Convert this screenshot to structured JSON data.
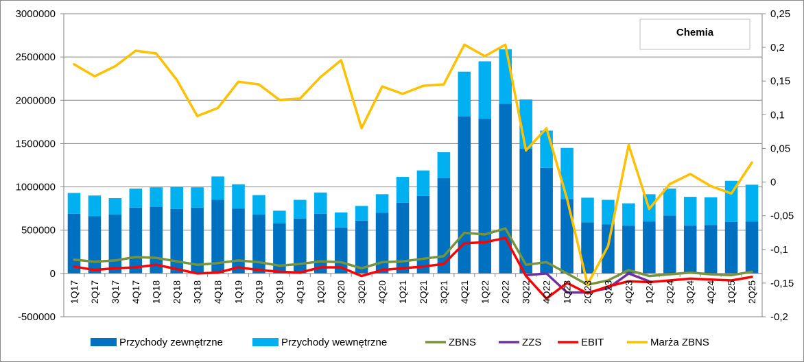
{
  "chart_data": {
    "type": "bar",
    "title": "Chemia",
    "categories": [
      "1Q17",
      "2Q17",
      "3Q17",
      "4Q17",
      "1Q18",
      "2Q18",
      "3Q18",
      "4Q18",
      "1Q19",
      "2Q19",
      "3Q19",
      "4Q19",
      "1Q20",
      "2Q20",
      "3Q20",
      "4Q20",
      "1Q21",
      "2Q21",
      "3Q21",
      "4Q21",
      "1Q22",
      "2Q22",
      "3Q22",
      "4Q22",
      "1Q23",
      "2Q23",
      "3Q23",
      "4Q23",
      "1Q24",
      "2Q24",
      "3Q24",
      "4Q24",
      "1Q25",
      "2Q25"
    ],
    "y_left": {
      "ylim": [
        -500000,
        3000000
      ],
      "ticks": [
        "-500000",
        "0",
        "500000",
        "1000000",
        "1500000",
        "2000000",
        "2500000",
        "3000000"
      ],
      "tick_values": [
        -500000,
        0,
        500000,
        1000000,
        1500000,
        2000000,
        2500000,
        3000000
      ]
    },
    "y_right": {
      "ylim": [
        -0.2,
        0.25
      ],
      "ticks": [
        "-0,2",
        "-0,15",
        "-0,1",
        "-0,05",
        "0",
        "0,05",
        "0,1",
        "0,15",
        "0,2",
        "0,25"
      ],
      "tick_values": [
        -0.2,
        -0.15,
        -0.1,
        -0.05,
        0,
        0.05,
        0.1,
        0.15,
        0.2,
        0.25
      ]
    },
    "grid": true,
    "legend_position": "bottom",
    "series": [
      {
        "name": "Przychody zewnętrzne",
        "kind": "stacked-bar",
        "axis": "left",
        "color": "#0070c0",
        "values": [
          690000,
          660000,
          680000,
          760000,
          770000,
          745000,
          760000,
          850000,
          750000,
          680000,
          580000,
          635000,
          690000,
          530000,
          610000,
          700000,
          815000,
          895000,
          1100000,
          1815000,
          1785000,
          1960000,
          1440000,
          1220000,
          860000,
          590000,
          565000,
          555000,
          600000,
          670000,
          555000,
          560000,
          595000,
          600000
        ]
      },
      {
        "name": "Przychody wewnętrzne",
        "kind": "stacked-bar",
        "axis": "left",
        "color": "#00b0f0",
        "values": [
          240000,
          240000,
          190000,
          220000,
          225000,
          255000,
          235000,
          270000,
          280000,
          225000,
          145000,
          215000,
          245000,
          175000,
          170000,
          215000,
          300000,
          295000,
          300000,
          515000,
          665000,
          630000,
          570000,
          430000,
          590000,
          285000,
          285000,
          255000,
          315000,
          310000,
          330000,
          320000,
          475000,
          425000
        ]
      },
      {
        "name": "ZBNS",
        "kind": "line",
        "axis": "left",
        "color": "#77933c",
        "values": [
          160000,
          135000,
          150000,
          190000,
          180000,
          140000,
          100000,
          120000,
          150000,
          130000,
          90000,
          110000,
          140000,
          130000,
          60000,
          130000,
          140000,
          170000,
          200000,
          470000,
          450000,
          520000,
          100000,
          130000,
          0,
          -130000,
          -80000,
          40000,
          -30000,
          -10000,
          10000,
          -10000,
          -20000,
          20000
        ]
      },
      {
        "name": "ZZS",
        "kind": "line",
        "axis": "left",
        "color": "#7030a0",
        "values": [
          null,
          null,
          null,
          null,
          null,
          null,
          null,
          null,
          null,
          null,
          null,
          null,
          null,
          null,
          null,
          null,
          null,
          null,
          null,
          null,
          null,
          null,
          -20000,
          0,
          -220000,
          -220000,
          -170000,
          0,
          -90000,
          null,
          null,
          null,
          null,
          null
        ]
      },
      {
        "name": "EBIT",
        "kind": "line",
        "axis": "left",
        "color": "#ff0000",
        "values": [
          80000,
          40000,
          60000,
          70000,
          100000,
          50000,
          0,
          10000,
          70000,
          40000,
          20000,
          10000,
          70000,
          70000,
          -30000,
          40000,
          60000,
          80000,
          110000,
          350000,
          360000,
          410000,
          -30000,
          -290000,
          -110000,
          -230000,
          -150000,
          -90000,
          -100000,
          -80000,
          -60000,
          -70000,
          -80000,
          -40000
        ]
      },
      {
        "name": "Marża ZBNS",
        "kind": "line",
        "axis": "right",
        "color": "#ffc000",
        "values": [
          0.175,
          0.157,
          0.172,
          0.195,
          0.191,
          0.152,
          0.098,
          0.11,
          0.149,
          0.145,
          0.122,
          0.124,
          0.156,
          0.181,
          0.08,
          0.142,
          0.131,
          0.143,
          0.145,
          0.204,
          0.187,
          0.204,
          0.047,
          0.08,
          -0.025,
          -0.152,
          -0.095,
          0.055,
          -0.04,
          -0.003,
          0.012,
          -0.006,
          -0.017,
          0.029
        ]
      }
    ]
  }
}
